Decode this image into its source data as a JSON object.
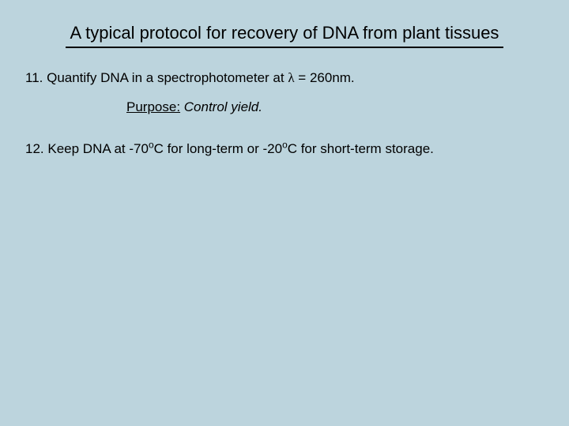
{
  "background_color": "#bcd4dd",
  "title": "A typical protocol for recovery of DNA from plant tissues",
  "step11": {
    "number": "11.",
    "pre": " Quantify DNA in a spectrophotometer at ",
    "lambda": "λ",
    "eq": " = ",
    "value": "260",
    "unit": "nm.",
    "purpose_label": "Purpose:",
    "purpose_text": " Control yield."
  },
  "step12": {
    "number": "12.",
    "pre": " Keep DNA at -70",
    "deg1": "o",
    "mid": "C for long-term or -20",
    "deg2": "o",
    "post": "C for short-term storage."
  },
  "fontsize_title": 22,
  "fontsize_body": 17
}
